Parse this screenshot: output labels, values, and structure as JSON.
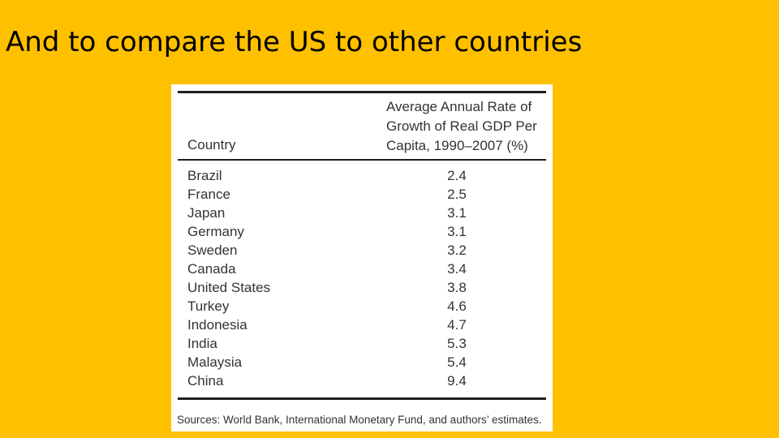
{
  "slide": {
    "title": "And to compare the US to other countries"
  },
  "table": {
    "headers": {
      "country": "Country",
      "rate": "Average Annual Rate of\nGrowth of Real GDP Per\nCapita, 1990–2007 (%)"
    },
    "rows": [
      {
        "country": "Brazil",
        "value": "2.4"
      },
      {
        "country": "France",
        "value": "2.5"
      },
      {
        "country": "Japan",
        "value": "3.1"
      },
      {
        "country": "Germany",
        "value": "3.1"
      },
      {
        "country": "Sweden",
        "value": "3.2"
      },
      {
        "country": "Canada",
        "value": "3.4"
      },
      {
        "country": "United States",
        "value": "3.8"
      },
      {
        "country": "Turkey",
        "value": "4.6"
      },
      {
        "country": "Indonesia",
        "value": "4.7"
      },
      {
        "country": "India",
        "value": "5.3"
      },
      {
        "country": "Malaysia",
        "value": "5.4"
      },
      {
        "country": "China",
        "value": "9.4"
      }
    ],
    "source": "Sources: World Bank, International Monetary Fund, and authors’ estimates."
  },
  "colors": {
    "background": "#FFC000",
    "table_background": "#FFFFFF",
    "text": "#333333",
    "rules": "#231F20"
  }
}
